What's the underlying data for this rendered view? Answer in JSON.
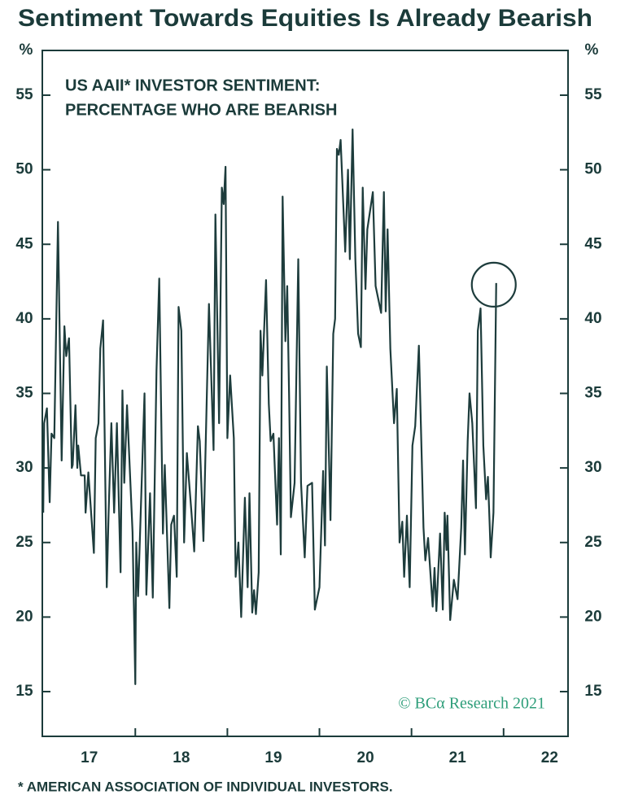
{
  "chart_data": {
    "type": "line",
    "title": "Sentiment Towards Equities Is Already Bearish",
    "subtitle": [
      "US AAII* INVESTOR SENTIMENT:",
      "PERCENTAGE WHO ARE BEARISH"
    ],
    "y_unit": "%",
    "footnote": "* AMERICAN ASSOCIATION OF INDIVIDUAL INVESTORS.",
    "source": "© BCα Research 2021",
    "color": "#1d3c3c",
    "xlim": [
      16.99,
      22.7
    ],
    "xticks": [
      {
        "value": 17.5,
        "label": "17"
      },
      {
        "value": 18.5,
        "label": "18"
      },
      {
        "value": 19.5,
        "label": "19"
      },
      {
        "value": 20.5,
        "label": "20"
      },
      {
        "value": 21.5,
        "label": "21"
      },
      {
        "value": 22.5,
        "label": "22"
      }
    ],
    "xtick_marks": [
      18,
      19,
      20,
      21,
      22
    ],
    "ylim": [
      12,
      58
    ],
    "yticks": [
      15,
      20,
      25,
      30,
      35,
      40,
      45,
      50,
      55
    ],
    "x": [
      17.0,
      17.01,
      17.04,
      17.07,
      17.09,
      17.12,
      17.16,
      17.2,
      17.23,
      17.25,
      17.28,
      17.31,
      17.32,
      17.35,
      17.37,
      17.38,
      17.41,
      17.45,
      17.46,
      17.49,
      17.55,
      17.57,
      17.6,
      17.62,
      17.65,
      17.69,
      17.71,
      17.74,
      17.77,
      17.8,
      17.84,
      17.86,
      17.88,
      17.91,
      17.97,
      18.0,
      18.01,
      18.03,
      18.1,
      18.12,
      18.16,
      18.19,
      18.23,
      18.26,
      18.3,
      18.32,
      18.37,
      18.39,
      18.42,
      18.45,
      18.47,
      18.5,
      18.53,
      18.56,
      18.61,
      18.64,
      18.68,
      18.7,
      18.74,
      18.8,
      18.85,
      18.87,
      18.91,
      18.94,
      18.96,
      18.98,
      19.0,
      19.03,
      19.07,
      19.09,
      19.12,
      19.15,
      19.19,
      19.22,
      19.24,
      19.27,
      19.29,
      19.31,
      19.34,
      19.36,
      19.38,
      19.42,
      19.45,
      19.47,
      19.5,
      19.54,
      19.56,
      19.58,
      19.6,
      19.63,
      19.65,
      19.67,
      19.69,
      19.73,
      19.77,
      19.8,
      19.84,
      19.87,
      19.92,
      19.95,
      20.0,
      20.04,
      20.06,
      20.08,
      20.12,
      20.15,
      20.17,
      20.19,
      20.21,
      20.23,
      20.28,
      20.31,
      20.33,
      20.36,
      20.39,
      20.42,
      20.45,
      20.47,
      20.5,
      20.52,
      20.58,
      20.61,
      20.67,
      20.7,
      20.72,
      20.74,
      20.77,
      20.81,
      20.84,
      20.87,
      20.9,
      20.92,
      20.95,
      20.98,
      21.01,
      21.04,
      21.08,
      21.13,
      21.15,
      21.18,
      21.21,
      21.23,
      21.25,
      21.27,
      21.31,
      21.34,
      21.36,
      21.38,
      21.39,
      21.42,
      21.46,
      21.5,
      21.54,
      21.56,
      21.58,
      21.61,
      21.63,
      21.66,
      21.7,
      21.72,
      21.75,
      21.78,
      21.81,
      21.83,
      21.85,
      21.86,
      21.89,
      21.92
    ],
    "values": [
      27,
      33,
      34,
      27.7,
      32.3,
      32,
      46.5,
      30.5,
      39.5,
      37.5,
      38.7,
      30,
      30.2,
      34.2,
      30,
      31.5,
      29.5,
      29.5,
      27,
      29.7,
      24.3,
      32,
      33,
      38,
      39.9,
      22,
      27,
      33,
      27,
      33,
      23,
      35.2,
      29,
      34.2,
      25.7,
      15.5,
      25,
      21.4,
      35,
      21.5,
      28.3,
      21.3,
      36.5,
      42.7,
      25.6,
      30.2,
      20.6,
      26.2,
      26.8,
      22.7,
      40.8,
      39.2,
      25,
      31,
      27,
      24.4,
      32.8,
      31.8,
      25.1,
      41,
      31.2,
      47,
      33,
      48.8,
      47.7,
      50.2,
      32,
      36.2,
      32,
      22.7,
      25,
      20,
      28,
      22,
      28.3,
      20.3,
      21.8,
      20.2,
      23,
      39.2,
      36.2,
      42.6,
      34.3,
      31.8,
      32.3,
      26.2,
      32,
      24.2,
      48.2,
      38.5,
      42.2,
      35,
      26.7,
      29,
      44,
      29,
      24,
      28.8,
      29,
      20.5,
      22,
      29.8,
      24.8,
      36.8,
      26.5,
      39,
      40,
      51.4,
      51,
      52,
      44.5,
      50,
      44,
      52.7,
      44,
      39,
      38.1,
      48.8,
      42,
      46,
      48.5,
      42.2,
      40.4,
      48.5,
      40.5,
      46,
      38,
      33,
      35.3,
      25,
      26.4,
      22.7,
      26.8,
      22,
      31.5,
      32.8,
      38.2,
      26,
      23.8,
      25.3,
      22.5,
      20.7,
      23.3,
      20.4,
      25.6,
      20.5,
      27,
      24.5,
      26.8,
      19.8,
      22.5,
      21.2,
      26,
      30.5,
      24.2,
      31.8,
      35,
      33,
      27.3,
      39.2,
      40.7,
      31.5,
      27.9,
      29.4,
      26,
      24,
      27,
      42.4
    ]
  }
}
